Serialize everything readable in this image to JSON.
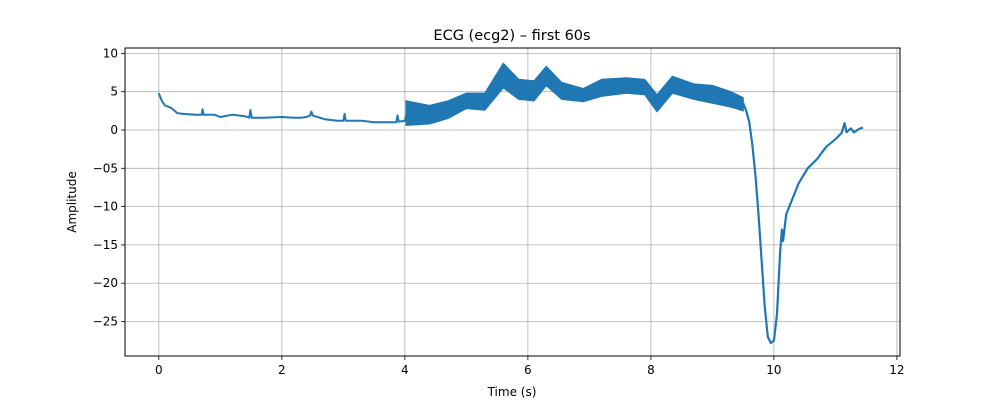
{
  "chart_data": {
    "type": "line",
    "title": "ECG (ecg2) – first 60s",
    "xlabel": "Time (s)",
    "ylabel": "Amplitude",
    "xlim": [
      -0.55,
      12.05
    ],
    "ylim": [
      -29.5,
      10.7
    ],
    "xticks": [
      0,
      2,
      4,
      6,
      8,
      10,
      12
    ],
    "xtick_labels": [
      "0",
      "2",
      "4",
      "6",
      "8",
      "10",
      "12"
    ],
    "yticks": [
      10,
      5,
      0,
      -5,
      -10,
      -15,
      -20,
      -25
    ],
    "ytick_labels": [
      "10",
      "5",
      "0",
      "−05",
      "−10",
      "−15",
      "−20",
      "−25"
    ],
    "grid": true,
    "legend": "none",
    "series": [
      {
        "color": "#1f77b4",
        "band": [
          {
            "x": 4.02,
            "lo": 0.6,
            "hi": 3.8
          },
          {
            "x": 4.4,
            "lo": 0.8,
            "hi": 3.2
          },
          {
            "x": 4.7,
            "lo": 1.5,
            "hi": 3.8
          },
          {
            "x": 5.0,
            "lo": 2.8,
            "hi": 4.8
          },
          {
            "x": 5.3,
            "lo": 2.6,
            "hi": 4.8
          },
          {
            "x": 5.6,
            "lo": 5.5,
            "hi": 8.7
          },
          {
            "x": 5.85,
            "lo": 4.0,
            "hi": 6.6
          },
          {
            "x": 6.1,
            "lo": 3.8,
            "hi": 6.4
          },
          {
            "x": 6.3,
            "lo": 5.8,
            "hi": 8.3
          },
          {
            "x": 6.55,
            "lo": 4.0,
            "hi": 6.2
          },
          {
            "x": 6.9,
            "lo": 3.7,
            "hi": 5.4
          },
          {
            "x": 7.2,
            "lo": 4.4,
            "hi": 6.6
          },
          {
            "x": 7.6,
            "lo": 4.8,
            "hi": 6.8
          },
          {
            "x": 7.9,
            "lo": 4.6,
            "hi": 6.6
          },
          {
            "x": 8.1,
            "lo": 2.4,
            "hi": 4.6
          },
          {
            "x": 8.35,
            "lo": 4.8,
            "hi": 7.0
          },
          {
            "x": 8.7,
            "lo": 4.0,
            "hi": 6.0
          },
          {
            "x": 9.0,
            "lo": 3.5,
            "hi": 5.8
          },
          {
            "x": 9.3,
            "lo": 3.0,
            "hi": 5.0
          },
          {
            "x": 9.5,
            "lo": 2.5,
            "hi": 4.2
          }
        ],
        "line": [
          [
            0.0,
            4.8
          ],
          [
            0.05,
            3.8
          ],
          [
            0.1,
            3.2
          ],
          [
            0.2,
            2.9
          ],
          [
            0.3,
            2.2
          ],
          [
            0.4,
            2.1
          ],
          [
            0.6,
            2.0
          ],
          [
            0.7,
            2.0
          ],
          [
            0.71,
            2.7
          ],
          [
            0.73,
            2.0
          ],
          [
            0.9,
            2.0
          ],
          [
            1.0,
            1.7
          ],
          [
            1.2,
            2.0
          ],
          [
            1.4,
            1.8
          ],
          [
            1.47,
            1.6
          ],
          [
            1.49,
            2.6
          ],
          [
            1.51,
            1.6
          ],
          [
            1.7,
            1.6
          ],
          [
            2.0,
            1.7
          ],
          [
            2.2,
            1.6
          ],
          [
            2.3,
            1.6
          ],
          [
            2.4,
            1.7
          ],
          [
            2.46,
            1.9
          ],
          [
            2.48,
            2.4
          ],
          [
            2.5,
            1.9
          ],
          [
            2.7,
            1.4
          ],
          [
            2.9,
            1.2
          ],
          [
            3.0,
            1.2
          ],
          [
            3.02,
            2.1
          ],
          [
            3.04,
            1.2
          ],
          [
            3.3,
            1.2
          ],
          [
            3.5,
            1.0
          ],
          [
            3.8,
            1.0
          ],
          [
            3.86,
            1.0
          ],
          [
            3.88,
            1.9
          ],
          [
            3.9,
            1.1
          ],
          [
            4.0,
            1.2
          ],
          [
            4.02,
            2.0
          ]
        ],
        "tail": [
          [
            9.5,
            3.5
          ],
          [
            9.55,
            2.5
          ],
          [
            9.6,
            1.0
          ],
          [
            9.65,
            -2.0
          ],
          [
            9.7,
            -6.0
          ],
          [
            9.75,
            -11.0
          ],
          [
            9.8,
            -17.0
          ],
          [
            9.85,
            -23.0
          ],
          [
            9.9,
            -27.0
          ],
          [
            9.95,
            -27.8
          ],
          [
            10.0,
            -27.5
          ],
          [
            10.05,
            -24.0
          ],
          [
            10.1,
            -16.0
          ],
          [
            10.13,
            -13.0
          ],
          [
            10.15,
            -14.5
          ],
          [
            10.2,
            -11.0
          ],
          [
            10.3,
            -9.0
          ],
          [
            10.4,
            -7.0
          ],
          [
            10.55,
            -5.0
          ],
          [
            10.7,
            -3.8
          ],
          [
            10.85,
            -2.2
          ],
          [
            11.0,
            -1.2
          ],
          [
            11.1,
            -0.4
          ],
          [
            11.15,
            0.9
          ],
          [
            11.18,
            -0.3
          ],
          [
            11.25,
            0.2
          ],
          [
            11.3,
            -0.3
          ],
          [
            11.4,
            0.2
          ],
          [
            11.45,
            0.3
          ]
        ]
      }
    ]
  }
}
